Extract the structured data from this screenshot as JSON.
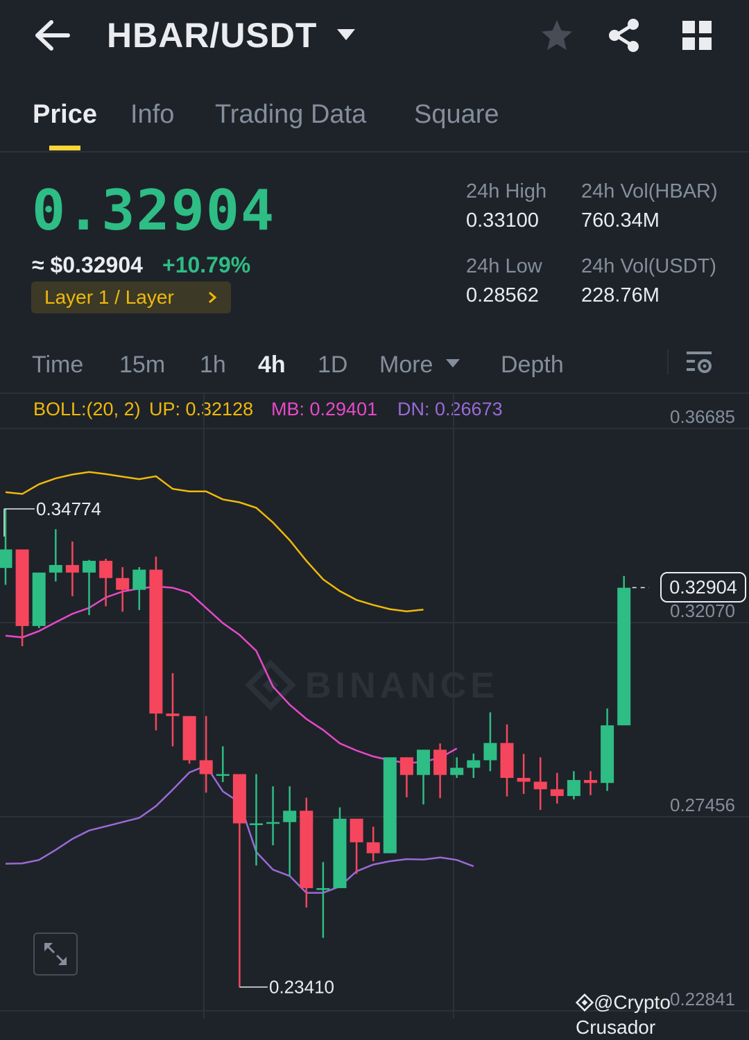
{
  "header": {
    "pair": "HBAR/USDT",
    "icons": [
      "back-arrow-icon",
      "caret-down-icon",
      "star-icon",
      "share-icon",
      "grid-icon"
    ]
  },
  "tabs": [
    {
      "label": "Price",
      "active": true
    },
    {
      "label": "Info",
      "active": false
    },
    {
      "label": "Trading Data",
      "active": false
    },
    {
      "label": "Square",
      "active": false
    }
  ],
  "price": {
    "last": "0.32904",
    "fiat": "≈ $0.32904",
    "change": "+10.79%",
    "tag": "Layer 1 / Layer"
  },
  "stats": {
    "high_label": "24h High",
    "high": "0.33100",
    "low_label": "24h Low",
    "low": "0.28562",
    "vol_base_label": "24h Vol(HBAR)",
    "vol_base": "760.34M",
    "vol_quote_label": "24h Vol(USDT)",
    "vol_quote": "228.76M"
  },
  "timeframes": {
    "items": [
      "Time",
      "15m",
      "1h",
      "4h",
      "1D"
    ],
    "active": "4h",
    "more": "More",
    "depth": "Depth"
  },
  "boll": {
    "label": "BOLL:(20, 2)",
    "up": "UP: 0.32128",
    "mb": "MB: 0.29401",
    "dn": "DN: 0.26673"
  },
  "colors": {
    "up": "#2ebd85",
    "down": "#f6465d",
    "accent": "#fcd535",
    "boll_up": "#f0b90b",
    "boll_mb": "#e749c9",
    "boll_dn": "#9b6ad6"
  },
  "axis": {
    "labels": [
      "0.36685",
      "0.32070",
      "0.27456",
      "0.22841"
    ]
  },
  "chart": {
    "current_price": "0.32904",
    "max_label": "0.34774",
    "min_label": "0.23410",
    "watermark": "@Crypto Crusador",
    "logo_watermark": "BINANCE"
  },
  "chart_data": {
    "type": "candlestick",
    "title": "",
    "ylim": [
      0.22,
      0.371
    ],
    "candles": [
      {
        "o": 0.3337,
        "h": 0.3477,
        "l": 0.3297,
        "c": 0.3381
      },
      {
        "o": 0.3381,
        "h": 0.3381,
        "l": 0.3151,
        "c": 0.3199
      },
      {
        "o": 0.3199,
        "h": 0.3326,
        "l": 0.3194,
        "c": 0.3326
      },
      {
        "o": 0.3326,
        "h": 0.3429,
        "l": 0.3305,
        "c": 0.3344
      },
      {
        "o": 0.3344,
        "h": 0.34,
        "l": 0.327,
        "c": 0.3326
      },
      {
        "o": 0.3326,
        "h": 0.3356,
        "l": 0.3225,
        "c": 0.3354
      },
      {
        "o": 0.3354,
        "h": 0.3359,
        "l": 0.3246,
        "c": 0.3313
      },
      {
        "o": 0.3313,
        "h": 0.3339,
        "l": 0.3233,
        "c": 0.3285
      },
      {
        "o": 0.3285,
        "h": 0.3339,
        "l": 0.3237,
        "c": 0.3333
      },
      {
        "o": 0.3333,
        "h": 0.3364,
        "l": 0.2951,
        "c": 0.2991
      },
      {
        "o": 0.2991,
        "h": 0.3087,
        "l": 0.2913,
        "c": 0.2985
      },
      {
        "o": 0.2985,
        "h": 0.2985,
        "l": 0.2872,
        "c": 0.288
      },
      {
        "o": 0.288,
        "h": 0.2985,
        "l": 0.2803,
        "c": 0.2847
      },
      {
        "o": 0.2847,
        "h": 0.2913,
        "l": 0.2828,
        "c": 0.2847
      },
      {
        "o": 0.2847,
        "h": 0.2847,
        "l": 0.2341,
        "c": 0.273
      },
      {
        "o": 0.273,
        "h": 0.2847,
        "l": 0.263,
        "c": 0.273
      },
      {
        "o": 0.273,
        "h": 0.2818,
        "l": 0.2678,
        "c": 0.2733
      },
      {
        "o": 0.2733,
        "h": 0.2818,
        "l": 0.2605,
        "c": 0.276
      },
      {
        "o": 0.276,
        "h": 0.2791,
        "l": 0.253,
        "c": 0.2576
      },
      {
        "o": 0.2576,
        "h": 0.2638,
        "l": 0.2458,
        "c": 0.2576
      },
      {
        "o": 0.2576,
        "h": 0.2768,
        "l": 0.2576,
        "c": 0.2741
      },
      {
        "o": 0.2741,
        "h": 0.2741,
        "l": 0.261,
        "c": 0.2685
      },
      {
        "o": 0.2685,
        "h": 0.2722,
        "l": 0.264,
        "c": 0.2659
      },
      {
        "o": 0.2659,
        "h": 0.2877,
        "l": 0.2659,
        "c": 0.2887
      },
      {
        "o": 0.2887,
        "h": 0.2887,
        "l": 0.2792,
        "c": 0.2845
      },
      {
        "o": 0.2845,
        "h": 0.2905,
        "l": 0.2775,
        "c": 0.2905
      },
      {
        "o": 0.2905,
        "h": 0.292,
        "l": 0.279,
        "c": 0.2845
      },
      {
        "o": 0.2845,
        "h": 0.2887,
        "l": 0.2838,
        "c": 0.2862
      },
      {
        "o": 0.2862,
        "h": 0.2896,
        "l": 0.2838,
        "c": 0.288
      },
      {
        "o": 0.288,
        "h": 0.2994,
        "l": 0.2854,
        "c": 0.2921
      },
      {
        "o": 0.2921,
        "h": 0.2965,
        "l": 0.2794,
        "c": 0.2838
      },
      {
        "o": 0.2838,
        "h": 0.2895,
        "l": 0.28,
        "c": 0.2829
      },
      {
        "o": 0.2829,
        "h": 0.2887,
        "l": 0.2762,
        "c": 0.2811
      },
      {
        "o": 0.2811,
        "h": 0.285,
        "l": 0.2777,
        "c": 0.2795
      },
      {
        "o": 0.2795,
        "h": 0.2854,
        "l": 0.2787,
        "c": 0.2833
      },
      {
        "o": 0.2833,
        "h": 0.2854,
        "l": 0.2797,
        "c": 0.2826
      },
      {
        "o": 0.2826,
        "h": 0.3003,
        "l": 0.2807,
        "c": 0.2963
      },
      {
        "o": 0.2963,
        "h": 0.3318,
        "l": 0.2963,
        "c": 0.329
      }
    ],
    "boll_up": [
      0.3517,
      0.3513,
      0.3536,
      0.355,
      0.3559,
      0.3565,
      0.356,
      0.3554,
      0.3548,
      0.3555,
      0.3525,
      0.3519,
      0.3519,
      0.35,
      0.3493,
      0.348,
      0.3445,
      0.3403,
      0.3354,
      0.331,
      0.3282,
      0.3261,
      0.3249,
      0.3239,
      0.3234,
      0.3238
    ],
    "boll_mb": [
      0.3176,
      0.3172,
      0.3187,
      0.3208,
      0.3228,
      0.3242,
      0.3267,
      0.3281,
      0.3288,
      0.3293,
      0.329,
      0.3278,
      0.3242,
      0.3206,
      0.3178,
      0.314,
      0.3055,
      0.3012,
      0.2978,
      0.2952,
      0.292,
      0.2903,
      0.2889,
      0.288,
      0.2873,
      0.2876,
      0.2886,
      0.2908
    ],
    "boll_dn": [
      0.2634,
      0.2635,
      0.2643,
      0.2667,
      0.2693,
      0.2713,
      0.2723,
      0.2733,
      0.2743,
      0.2771,
      0.281,
      0.2851,
      0.2867,
      0.2806,
      0.278,
      0.2662,
      0.262,
      0.2605,
      0.2565,
      0.2565,
      0.258,
      0.2616,
      0.2632,
      0.264,
      0.2645,
      0.2644,
      0.2649,
      0.2643,
      0.2628
    ]
  }
}
